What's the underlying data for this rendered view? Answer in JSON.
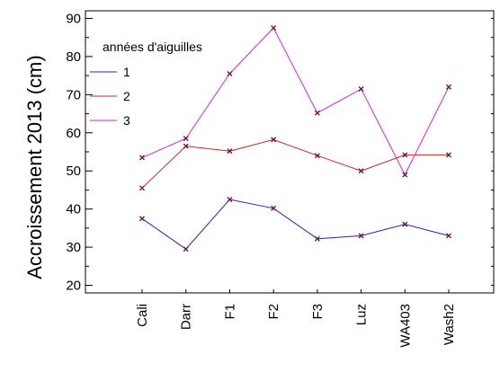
{
  "chart_data": {
    "type": "line",
    "title": "",
    "xlabel": "",
    "ylabel": "Accroissement 2013 (cm)",
    "categories": [
      "Cali",
      "Darr",
      "F1",
      "F2",
      "F3",
      "Luz",
      "WA403",
      "Wash2"
    ],
    "ylim": [
      18,
      92
    ],
    "yticks": [
      20,
      30,
      40,
      50,
      60,
      70,
      80,
      90
    ],
    "grid": false,
    "legend": {
      "title": "années d'aiguilles",
      "placement": "top-left"
    },
    "series": [
      {
        "name": "1",
        "color": "#2020c8",
        "values": [
          37.5,
          29.5,
          42.5,
          40.2,
          32.2,
          33.0,
          36.0,
          33.0
        ]
      },
      {
        "name": "2",
        "color": "#d42020",
        "values": [
          45.5,
          56.5,
          55.2,
          58.2,
          54.0,
          50.0,
          54.2,
          54.2
        ]
      },
      {
        "name": "3",
        "color": "#e020e0",
        "values": [
          53.5,
          58.5,
          75.5,
          87.5,
          65.2,
          71.5,
          49.0,
          72.0
        ]
      }
    ]
  }
}
